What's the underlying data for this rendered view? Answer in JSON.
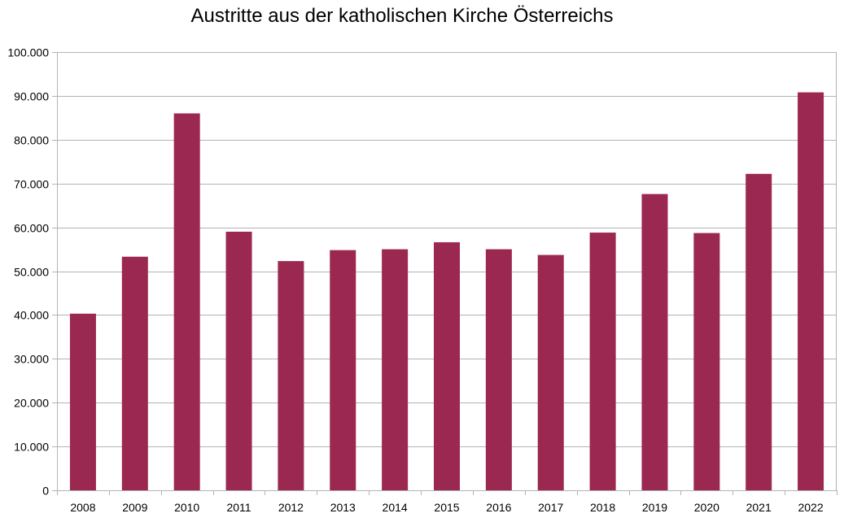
{
  "chart_data": {
    "type": "bar",
    "title": "Austritte aus der katholischen Kirche Österreichs",
    "xlabel": "",
    "ylabel": "",
    "categories": [
      "2008",
      "2009",
      "2010",
      "2011",
      "2012",
      "2013",
      "2014",
      "2015",
      "2016",
      "2017",
      "2018",
      "2019",
      "2020",
      "2021",
      "2022"
    ],
    "values": [
      40300,
      53300,
      86000,
      59000,
      52300,
      54800,
      55000,
      56600,
      55000,
      53700,
      58800,
      67600,
      58700,
      72200,
      90800
    ],
    "ylim": [
      0,
      100000
    ],
    "yticks": [
      0,
      10000,
      20000,
      30000,
      40000,
      50000,
      60000,
      70000,
      80000,
      90000,
      100000
    ],
    "ytick_labels": [
      "0",
      "10.000",
      "20.000",
      "30.000",
      "40.000",
      "50.000",
      "60.000",
      "70.000",
      "80.000",
      "90.000",
      "100.000"
    ],
    "grid": true,
    "legend": "none",
    "bar_color": "#9b2850",
    "grid_color": "#b3b3b3"
  }
}
